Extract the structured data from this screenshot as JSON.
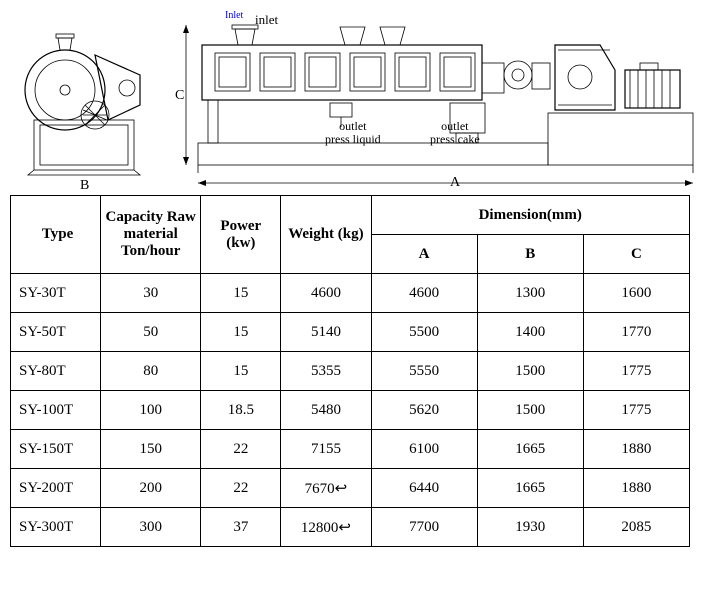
{
  "diagram": {
    "labels": {
      "inlet_blue": "Inlet",
      "inlet": "inlet",
      "outlet_liquid": "outlet\npress liquid",
      "outlet_cake": "outlet\npress cake",
      "dim_a": "A",
      "dim_b": "B",
      "dim_c": "C"
    }
  },
  "table": {
    "headers": {
      "type": "Type",
      "capacity": "Capacity Raw material Ton/hour",
      "power": "Power (kw)",
      "weight": "Weight (kg)",
      "dimension": "Dimension(mm)",
      "dim_a": "A",
      "dim_b": "B",
      "dim_c": "C"
    },
    "rows": [
      {
        "type": "SY-30T",
        "capacity": "30",
        "power": "15",
        "weight": "4600",
        "a": "4600",
        "b": "1300",
        "c": "1600"
      },
      {
        "type": "SY-50T",
        "capacity": "50",
        "power": "15",
        "weight": "5140",
        "a": "5500",
        "b": "1400",
        "c": "1770"
      },
      {
        "type": "SY-80T",
        "capacity": "80",
        "power": "15",
        "weight": "5355",
        "a": "5550",
        "b": "1500",
        "c": "1775"
      },
      {
        "type": "SY-100T",
        "capacity": "100",
        "power": "18.5",
        "weight": "5480",
        "a": "5620",
        "b": "1500",
        "c": "1775"
      },
      {
        "type": "SY-150T",
        "capacity": "150",
        "power": "22",
        "weight": "7155",
        "a": "6100",
        "b": "1665",
        "c": "1880"
      },
      {
        "type": "SY-200T",
        "capacity": "200",
        "power": "22",
        "weight": "7670↩",
        "a": "6440",
        "b": "1665",
        "c": "1880"
      },
      {
        "type": "SY-300T",
        "capacity": "300",
        "power": "37",
        "weight": "12800↩",
        "a": "7700",
        "b": "1930",
        "c": "2085"
      }
    ],
    "col_widths": [
      "90px",
      "100px",
      "80px",
      "90px",
      "106px",
      "106px",
      "106px"
    ],
    "styles": {
      "border_color": "#000000",
      "font_family": "Times New Roman",
      "header_fontsize": 15,
      "cell_fontsize": 15,
      "background": "#ffffff"
    }
  }
}
